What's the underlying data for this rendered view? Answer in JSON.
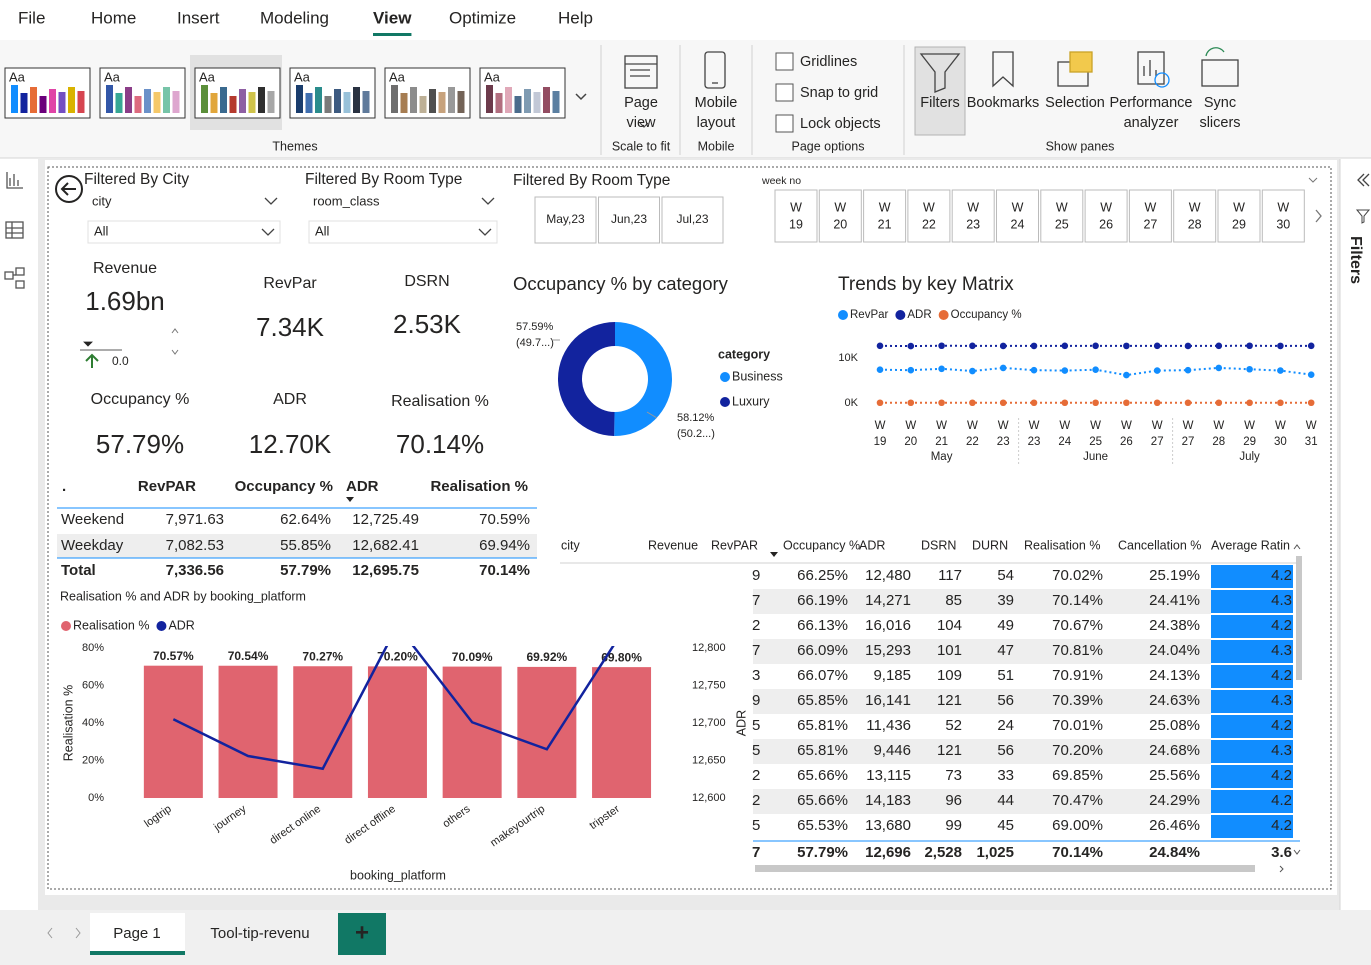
{
  "menu": {
    "items": [
      "File",
      "Home",
      "Insert",
      "Modeling",
      "View",
      "Optimize",
      "Help"
    ],
    "active": "View"
  },
  "ribbon": {
    "themes": {
      "tiles": [
        "Aa",
        "Aa",
        "Aa",
        "Aa",
        "Aa",
        "Aa"
      ],
      "group": "Themes"
    },
    "scale": {
      "button": [
        "Page",
        "view"
      ],
      "group": "Scale to fit"
    },
    "mobile": {
      "button": [
        "Mobile",
        "layout"
      ],
      "group": "Mobile"
    },
    "page_options": {
      "checkboxes": [
        "Gridlines",
        "Snap to grid",
        "Lock objects"
      ],
      "group": "Page options"
    },
    "show_panes": {
      "buttons": [
        [
          "Filters"
        ],
        [
          "Bookmarks"
        ],
        [
          "Selection"
        ],
        [
          "Performance",
          "analyzer"
        ],
        [
          "Sync",
          "slicers"
        ]
      ],
      "group": "Show panes"
    }
  },
  "filters_pane": "Filters",
  "slicers": {
    "city": {
      "title": "Filtered By City",
      "field": "city",
      "value": "All"
    },
    "room": {
      "title": "Filtered By Room Type",
      "field": "room_class",
      "value": "All"
    },
    "month": {
      "title": "Filtered By Room Type",
      "tiles": [
        "May,23",
        "Jun,23",
        "Jul,23"
      ]
    },
    "week": {
      "title": "week no",
      "tiles": [
        [
          "W",
          "19"
        ],
        [
          "W",
          "20"
        ],
        [
          "W",
          "21"
        ],
        [
          "W",
          "22"
        ],
        [
          "W",
          "23"
        ],
        [
          "W",
          "24"
        ],
        [
          "W",
          "25"
        ],
        [
          "W",
          "26"
        ],
        [
          "W",
          "27"
        ],
        [
          "W",
          "28"
        ],
        [
          "W",
          "29"
        ],
        [
          "W",
          "30"
        ]
      ]
    }
  },
  "cards": [
    {
      "label": "Revenue",
      "value": "1.69bn",
      "indicator": "0.0"
    },
    {
      "label": "RevPar",
      "value": "7.34K"
    },
    {
      "label": "DSRN",
      "value": "2.53K"
    },
    {
      "label": "Occupancy %",
      "value": "57.79%"
    },
    {
      "label": "ADR",
      "value": "12.70K"
    },
    {
      "label": "Realisation %",
      "value": "70.14%"
    }
  ],
  "donut": {
    "type": "donut",
    "title": "Occupancy % by category",
    "legend_title": "category",
    "categories": [
      "Business",
      "Luxury"
    ],
    "values": [
      58.12,
      57.59
    ],
    "value_labels": [
      "58.12%",
      "57.59%"
    ],
    "share_labels": [
      "(50.2...)",
      "(49.7...)"
    ],
    "colors": [
      "#118DFF",
      "#12239E"
    ]
  },
  "trends": {
    "type": "line",
    "title": "Trends by key Matrix",
    "x": [
      [
        "W",
        "19"
      ],
      [
        "W",
        "20"
      ],
      [
        "W",
        "21"
      ],
      [
        "W",
        "22"
      ],
      [
        "W",
        "23"
      ],
      [
        "W",
        "23"
      ],
      [
        "W",
        "24"
      ],
      [
        "W",
        "25"
      ],
      [
        "W",
        "26"
      ],
      [
        "W",
        "27"
      ],
      [
        "W",
        "27"
      ],
      [
        "W",
        "28"
      ],
      [
        "W",
        "29"
      ],
      [
        "W",
        "30"
      ],
      [
        "W",
        "31"
      ]
    ],
    "groups": [
      {
        "label": "May",
        "count": 5
      },
      {
        "label": "June",
        "count": 5
      },
      {
        "label": "July",
        "count": 5
      }
    ],
    "series": [
      {
        "name": "RevPar",
        "color": "#118DFF",
        "values": [
          7400,
          7300,
          7600,
          7100,
          7800,
          7300,
          7200,
          7400,
          6200,
          7200,
          7300,
          7800,
          7500,
          7200,
          6300
        ]
      },
      {
        "name": "ADR",
        "color": "#12239E",
        "values": [
          12700,
          12650,
          12720,
          12700,
          12680,
          12690,
          12700,
          12710,
          12690,
          12700,
          12680,
          12700,
          12720,
          12690,
          12700
        ]
      },
      {
        "name": "Occupancy %",
        "color": "#E66C37",
        "values": [
          57,
          58,
          57,
          58,
          57,
          58,
          57,
          58,
          57,
          58,
          57,
          58,
          57,
          58,
          57
        ]
      }
    ],
    "ylim": [
      0,
      14000
    ],
    "yticks": [
      {
        "value": 0,
        "label": "0K"
      },
      {
        "value": 10000,
        "label": "10K"
      }
    ]
  },
  "table1": {
    "headers": [
      ".",
      "RevPAR",
      "Occupancy %",
      "ADR",
      "Realisation %"
    ],
    "rows": [
      [
        "Weekend",
        "7,971.63",
        "62.64%",
        "12,725.49",
        "70.59%"
      ],
      [
        "Weekday",
        "7,082.53",
        "55.85%",
        "12,682.41",
        "69.94%"
      ]
    ],
    "total": [
      "Total",
      "7,336.56",
      "57.79%",
      "12,695.75",
      "70.14%"
    ]
  },
  "combo": {
    "type": "bar+line",
    "title": "Realisation % and ADR by booking_platform",
    "x_label": "booking_platform",
    "y_label": "Realisation %",
    "y2_label": "ADR",
    "categories": [
      "logtrip",
      "journey",
      "direct online",
      "direct offline",
      "others",
      "makeyourtrip",
      "tripster"
    ],
    "series": [
      {
        "name": "Realisation %",
        "color": "#E0646F",
        "values": [
          70.57,
          70.54,
          70.27,
          70.2,
          70.09,
          69.92,
          69.8
        ],
        "value_labels": [
          "70.57%",
          "70.54%",
          "70.27%",
          "70.20%",
          "70.09%",
          "69.92%",
          "69.80%"
        ]
      },
      {
        "name": "ADR",
        "color": "#12239E",
        "axis": "y2",
        "values": [
          12705,
          12656,
          12639,
          12830,
          12701,
          12665,
          12820
        ]
      }
    ],
    "ylim": [
      0,
      80
    ],
    "yticks": [
      {
        "value": 0,
        "label": "0%"
      },
      {
        "value": 20,
        "label": "20%"
      },
      {
        "value": 40,
        "label": "40%"
      },
      {
        "value": 60,
        "label": "60%"
      },
      {
        "value": 80,
        "label": "80%"
      }
    ],
    "y2lim": [
      12600,
      12800
    ],
    "y2ticks": [
      {
        "value": 12600,
        "label": "12,600"
      },
      {
        "value": 12650,
        "label": "12,650"
      },
      {
        "value": 12700,
        "label": "12,700"
      },
      {
        "value": 12750,
        "label": "12,750"
      },
      {
        "value": 12800,
        "label": "12,800"
      }
    ]
  },
  "table2": {
    "headers": [
      "city",
      "Revenue",
      "RevPAR",
      "Occupancy %",
      "ADR",
      "DSRN",
      "DURN",
      "Realisation %",
      "Cancellation %",
      "Average Ratin"
    ],
    "rows": [
      [
        "9",
        "66.25%",
        "12,480",
        "117",
        "54",
        "70.02%",
        "25.19%",
        "4.2"
      ],
      [
        "7",
        "66.19%",
        "14,271",
        "85",
        "39",
        "70.14%",
        "24.41%",
        "4.3"
      ],
      [
        "2",
        "66.13%",
        "16,016",
        "104",
        "49",
        "70.67%",
        "24.38%",
        "4.2"
      ],
      [
        "7",
        "66.09%",
        "15,293",
        "101",
        "47",
        "70.81%",
        "24.04%",
        "4.3"
      ],
      [
        "3",
        "66.07%",
        "9,185",
        "109",
        "51",
        "70.91%",
        "24.13%",
        "4.2"
      ],
      [
        "9",
        "65.85%",
        "16,141",
        "121",
        "56",
        "70.39%",
        "24.63%",
        "4.3"
      ],
      [
        "5",
        "65.81%",
        "11,436",
        "52",
        "24",
        "70.01%",
        "25.08%",
        "4.2"
      ],
      [
        "5",
        "65.81%",
        "9,446",
        "121",
        "56",
        "70.20%",
        "24.68%",
        "4.3"
      ],
      [
        "2",
        "65.66%",
        "13,115",
        "73",
        "33",
        "69.85%",
        "25.56%",
        "4.2"
      ],
      [
        "2",
        "65.66%",
        "14,183",
        "96",
        "44",
        "70.47%",
        "24.29%",
        "4.2"
      ],
      [
        "5",
        "65.53%",
        "13,680",
        "99",
        "45",
        "69.00%",
        "26.46%",
        "4.2"
      ]
    ],
    "total": [
      "7",
      "57.79%",
      "12,696",
      "2,528",
      "1,025",
      "70.14%",
      "24.84%",
      "3.6"
    ]
  },
  "tabs": [
    "Page 1",
    "Tool-tip-revenu",
    "+"
  ]
}
